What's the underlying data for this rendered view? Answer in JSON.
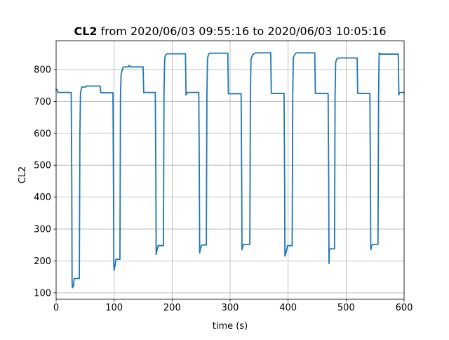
{
  "chart_data": {
    "type": "line",
    "title": {
      "bold": "CL2",
      "rest": " from 2020/06/03 09:55:16 to 2020/06/03 10:05:16"
    },
    "xlabel": "time (s)",
    "ylabel": "CL2",
    "xlim": [
      0,
      600
    ],
    "ylim": [
      80,
      890
    ],
    "xticks": [
      0,
      100,
      200,
      300,
      400,
      500,
      600
    ],
    "yticks": [
      100,
      200,
      300,
      400,
      500,
      600,
      700,
      800
    ],
    "grid": true,
    "line_color": "#1f77b4",
    "series": [
      {
        "points": [
          [
            0,
            737
          ],
          [
            2,
            737
          ],
          [
            3,
            728
          ],
          [
            26,
            728
          ],
          [
            27,
            440
          ],
          [
            27.5,
            140
          ],
          [
            28,
            116
          ],
          [
            30,
            122
          ],
          [
            31,
            145
          ],
          [
            40,
            145
          ],
          [
            41,
            600
          ],
          [
            42,
            725
          ],
          [
            44,
            745
          ],
          [
            51,
            745
          ],
          [
            52,
            748
          ],
          [
            76,
            748
          ],
          [
            77,
            727
          ],
          [
            98,
            727
          ],
          [
            99,
            400
          ],
          [
            99.5,
            185
          ],
          [
            100,
            170
          ],
          [
            102,
            190
          ],
          [
            103,
            205
          ],
          [
            110,
            205
          ],
          [
            111,
            720
          ],
          [
            112,
            785
          ],
          [
            115,
            805
          ],
          [
            117,
            808
          ],
          [
            125,
            808
          ],
          [
            126,
            813
          ],
          [
            128,
            808
          ],
          [
            150,
            808
          ],
          [
            151,
            728
          ],
          [
            171,
            728
          ],
          [
            172,
            450
          ],
          [
            172.5,
            220
          ],
          [
            174,
            235
          ],
          [
            176,
            248
          ],
          [
            185,
            248
          ],
          [
            186,
            720
          ],
          [
            187,
            825
          ],
          [
            188,
            843
          ],
          [
            191,
            849
          ],
          [
            223,
            849
          ],
          [
            224,
            720
          ],
          [
            226,
            728
          ],
          [
            246,
            728
          ],
          [
            247,
            450
          ],
          [
            247.5,
            225
          ],
          [
            249,
            240
          ],
          [
            251,
            250
          ],
          [
            259,
            250
          ],
          [
            260,
            720
          ],
          [
            261,
            835
          ],
          [
            263,
            848
          ],
          [
            265,
            851
          ],
          [
            296,
            851
          ],
          [
            297,
            724
          ],
          [
            319,
            724
          ],
          [
            320,
            450
          ],
          [
            320.5,
            235
          ],
          [
            322,
            248
          ],
          [
            324,
            252
          ],
          [
            334,
            252
          ],
          [
            335,
            720
          ],
          [
            336,
            832
          ],
          [
            339,
            847
          ],
          [
            344,
            852
          ],
          [
            370,
            852
          ],
          [
            371,
            725
          ],
          [
            393,
            725
          ],
          [
            394,
            450
          ],
          [
            394.5,
            215
          ],
          [
            397,
            230
          ],
          [
            399,
            248
          ],
          [
            407,
            248
          ],
          [
            408,
            720
          ],
          [
            409,
            838
          ],
          [
            412,
            848
          ],
          [
            414,
            852
          ],
          [
            446,
            852
          ],
          [
            447,
            725
          ],
          [
            469,
            725
          ],
          [
            470,
            450
          ],
          [
            470.5,
            192
          ],
          [
            471,
            232
          ],
          [
            472,
            238
          ],
          [
            480,
            238
          ],
          [
            481,
            720
          ],
          [
            482,
            823
          ],
          [
            484,
            833
          ],
          [
            487,
            836
          ],
          [
            519,
            836
          ],
          [
            520,
            725
          ],
          [
            541,
            725
          ],
          [
            542,
            450
          ],
          [
            542.5,
            235
          ],
          [
            544,
            248
          ],
          [
            546,
            252
          ],
          [
            555,
            252
          ],
          [
            556,
            720
          ],
          [
            557,
            852
          ],
          [
            559,
            848
          ],
          [
            590,
            848
          ],
          [
            591,
            720
          ],
          [
            592,
            728
          ],
          [
            600,
            728
          ]
        ]
      }
    ]
  }
}
